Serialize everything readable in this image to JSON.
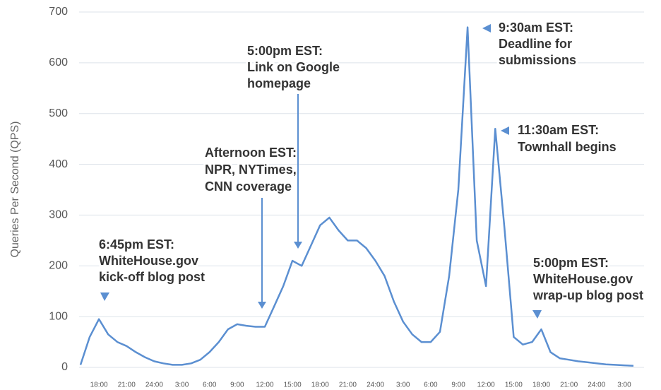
{
  "chart_data": {
    "type": "line",
    "y_label": "Queries Per Second (QPS)",
    "categories": [
      null,
      null,
      "18:00",
      null,
      null,
      "21:00",
      null,
      null,
      "24:00",
      null,
      null,
      "3:00",
      null,
      null,
      "6:00",
      null,
      null,
      "9:00",
      null,
      null,
      "12:00",
      null,
      null,
      "15:00",
      null,
      null,
      "18:00",
      null,
      null,
      "21:00",
      null,
      null,
      "24:00",
      null,
      null,
      "3:00",
      null,
      null,
      "6:00",
      null,
      null,
      "9:00",
      null,
      null,
      "12:00",
      null,
      null,
      "15:00",
      null,
      null,
      "18:00",
      null,
      null,
      "21:00",
      null,
      null,
      "24:00",
      null,
      null,
      "3:00",
      null
    ],
    "series": [
      {
        "color": "#5b8fd1",
        "values": [
          5,
          60,
          95,
          65,
          50,
          42,
          30,
          20,
          12,
          8,
          5,
          5,
          8,
          15,
          30,
          50,
          75,
          85,
          82,
          80,
          80,
          120,
          160,
          210,
          200,
          240,
          280,
          295,
          270,
          250,
          250,
          235,
          210,
          180,
          130,
          90,
          65,
          50,
          50,
          70,
          180,
          350,
          670,
          250,
          160,
          470,
          275,
          60,
          45,
          50,
          75,
          30,
          18,
          15,
          12,
          10,
          8,
          6,
          5,
          4,
          3
        ]
      }
    ],
    "ylim": [
      0,
      700
    ],
    "yticks": [
      0,
      100,
      200,
      300,
      400,
      500,
      600,
      700
    ],
    "grid": true,
    "annotations": [
      {
        "lines": [
          "6:45pm EST:",
          "WhiteHouse.gov",
          "kick-off blog post"
        ]
      },
      {
        "lines": [
          "Afternoon EST:",
          "NPR, NYTimes,",
          "CNN coverage"
        ]
      },
      {
        "lines": [
          "5:00pm EST:",
          "Link on Google",
          "homepage"
        ]
      },
      {
        "lines": [
          "9:30am EST:",
          "Deadline for",
          "submissions"
        ]
      },
      {
        "lines": [
          "11:30am EST:",
          "Townhall begins"
        ]
      },
      {
        "lines": [
          "5:00pm EST:",
          "WhiteHouse.gov",
          "wrap-up blog post"
        ]
      }
    ]
  }
}
